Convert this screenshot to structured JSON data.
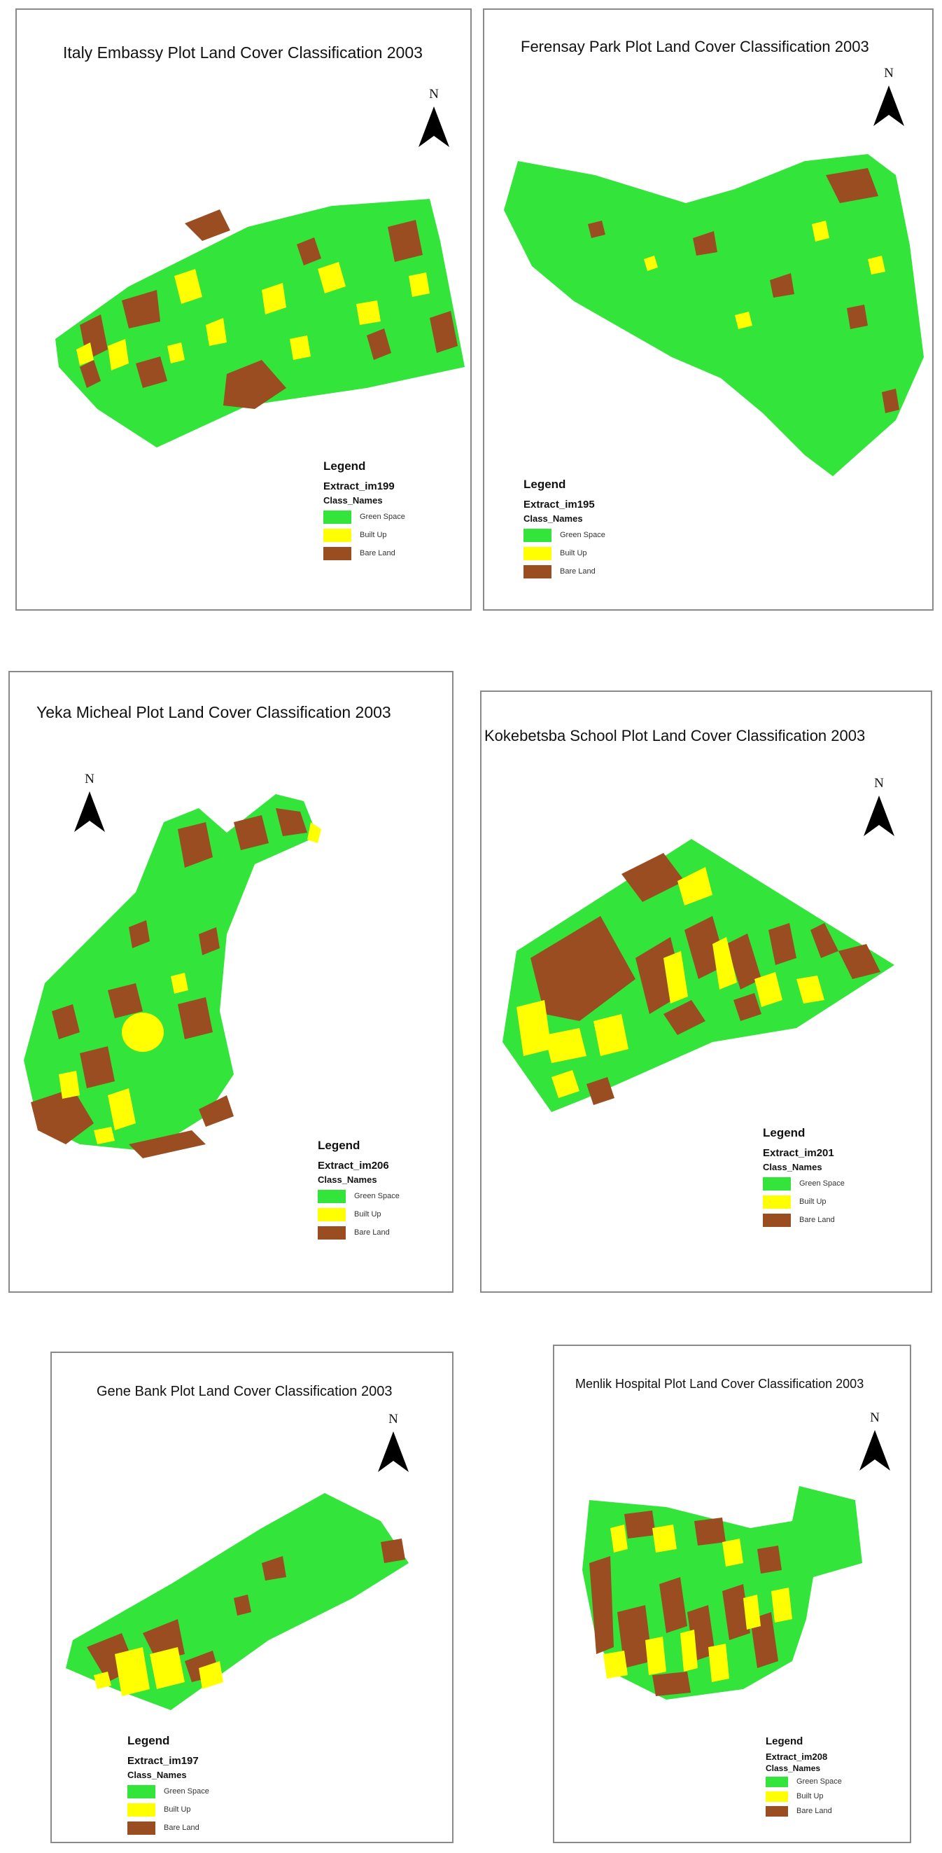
{
  "colors": {
    "green_space": "#33e43a",
    "built_up": "#ffff00",
    "bare_land": "#9a4d21"
  },
  "panels": [
    {
      "title": "Italy Embassy Plot Land Cover Classification 2003",
      "north": "N",
      "legend": {
        "title": "Legend",
        "layer": "Extract_im199",
        "field": "Class_Names",
        "items": [
          {
            "label": "Green Space",
            "color": "#33e43a"
          },
          {
            "label": "Built Up",
            "color": "#ffff00"
          },
          {
            "label": "Bare Land",
            "color": "#9a4d21"
          }
        ]
      }
    },
    {
      "title": "Ferensay Park Plot Land Cover Classification 2003",
      "north": "N",
      "legend": {
        "title": "Legend",
        "layer": "Extract_im195",
        "field": "Class_Names",
        "items": [
          {
            "label": "Green Space",
            "color": "#33e43a"
          },
          {
            "label": "Built Up",
            "color": "#ffff00"
          },
          {
            "label": "Bare Land",
            "color": "#9a4d21"
          }
        ]
      }
    },
    {
      "title": "Yeka Micheal Plot Land Cover Classification 2003",
      "north": "N",
      "legend": {
        "title": "Legend",
        "layer": "Extract_im206",
        "field": "Class_Names",
        "items": [
          {
            "label": "Green Space",
            "color": "#33e43a"
          },
          {
            "label": "Built Up",
            "color": "#ffff00"
          },
          {
            "label": "Bare Land",
            "color": "#9a4d21"
          }
        ]
      }
    },
    {
      "title": "Kokebetsba School Plot Land Cover Classification 2003",
      "north": "N",
      "legend": {
        "title": "Legend",
        "layer": "Extract_im201",
        "field": "Class_Names",
        "items": [
          {
            "label": "Green Space",
            "color": "#33e43a"
          },
          {
            "label": "Built Up",
            "color": "#ffff00"
          },
          {
            "label": "Bare Land",
            "color": "#9a4d21"
          }
        ]
      }
    },
    {
      "title": "Gene Bank Plot Land Cover Classification 2003",
      "north": "N",
      "legend": {
        "title": "Legend",
        "layer": "Extract_im197",
        "field": "Class_Names",
        "items": [
          {
            "label": "Green Space",
            "color": "#33e43a"
          },
          {
            "label": "Built Up",
            "color": "#ffff00"
          },
          {
            "label": "Bare Land",
            "color": "#9a4d21"
          }
        ]
      }
    },
    {
      "title": "Menlik Hospital Plot Land Cover Classification 2003",
      "north": "N",
      "legend": {
        "title": "Legend",
        "layer": "Extract_im208",
        "field": "Class_Names",
        "items": [
          {
            "label": "Green Space",
            "color": "#33e43a"
          },
          {
            "label": "Built Up",
            "color": "#ffff00"
          },
          {
            "label": "Bare Land",
            "color": "#9a4d21"
          }
        ]
      }
    }
  ]
}
